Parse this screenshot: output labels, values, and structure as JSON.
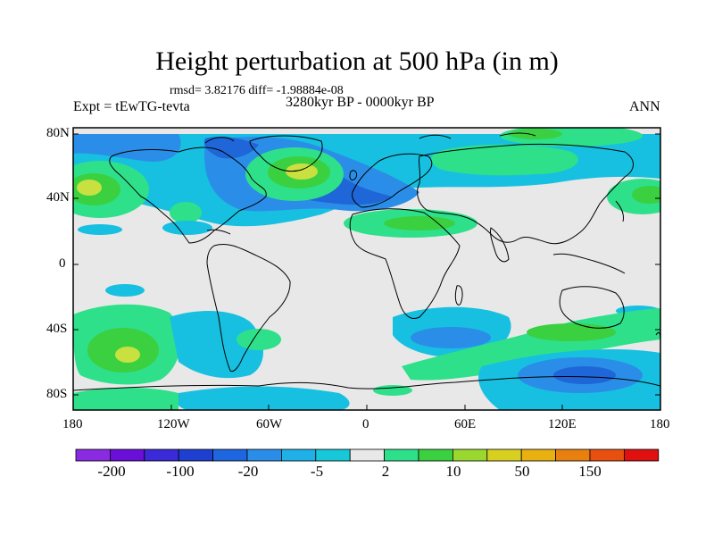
{
  "title": "Height perturbation at 500 hPa (in m)",
  "stats": "rmsd= 3.82176 diff= -1.98884e-08",
  "experiment": "Expt = tEwTG-tevta",
  "period": "3280kyr BP - 0000kyr BP",
  "season": "ANN",
  "axes": {
    "y_ticks": [
      "80N",
      "40N",
      "0",
      "40S",
      "80S"
    ],
    "x_ticks": [
      "180",
      "120W",
      "60W",
      "0",
      "60E",
      "120E",
      "180"
    ]
  },
  "colorbar": {
    "labels": [
      "-200",
      "-100",
      "-20",
      "-5",
      "2",
      "10",
      "50",
      "150"
    ],
    "colors": [
      "#8a2be2",
      "#6a0fd8",
      "#3a2ad8",
      "#1f3fd0",
      "#1e66e0",
      "#2a8ee8",
      "#1fb0e8",
      "#17c8d8",
      "#e8e8e8",
      "#2ee08a",
      "#3ad040",
      "#9ad830",
      "#d8d020",
      "#e8b010",
      "#e88010",
      "#e85010",
      "#e01010"
    ]
  },
  "colors": {
    "background": "#e8e8e8",
    "deep_blue": "#1f66d8",
    "mid_blue": "#2a8ee8",
    "light_blue": "#17c0e0",
    "green": "#2ee08a",
    "green_dark": "#3ad040",
    "yellow": "#c8e040"
  }
}
